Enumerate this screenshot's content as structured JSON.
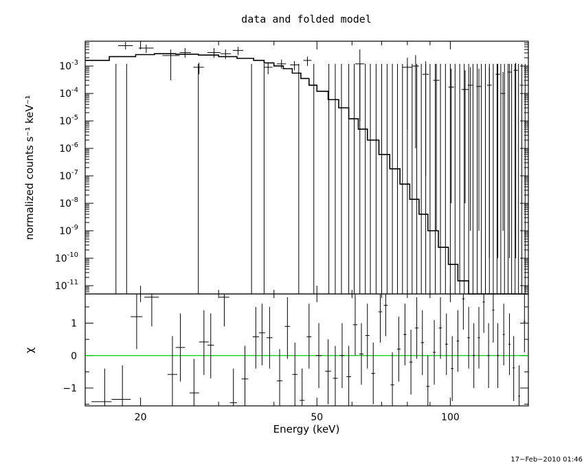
{
  "chart_data": [
    {
      "type": "step",
      "panel": "spectrum",
      "title": "data and folded model",
      "ylabel": "normalized counts s⁻¹ keV⁻¹",
      "yscale": "log",
      "xscale": "log",
      "xlim": [
        15,
        150
      ],
      "ylim": [
        5e-12,
        0.008
      ],
      "yticks": [
        {
          "value": 0.001,
          "mantissa": "10",
          "exp": "-3"
        },
        {
          "value": 0.0001,
          "mantissa": "10",
          "exp": "-4"
        },
        {
          "value": 1e-05,
          "mantissa": "10",
          "exp": "-5"
        },
        {
          "value": 1e-06,
          "mantissa": "10",
          "exp": "-6"
        },
        {
          "value": 1e-07,
          "mantissa": "10",
          "exp": "-7"
        },
        {
          "value": 1e-08,
          "mantissa": "10",
          "exp": "-8"
        },
        {
          "value": 1e-09,
          "mantissa": "10",
          "exp": "-9"
        },
        {
          "value": 1e-10,
          "mantissa": "10",
          "exp": "-10"
        },
        {
          "value": 1e-11,
          "mantissa": "10",
          "exp": "-11"
        }
      ],
      "model_step": {
        "x": [
          15,
          17,
          19.5,
          21.5,
          24,
          27,
          30,
          33,
          36,
          38,
          40,
          42,
          44,
          46,
          48,
          50,
          53,
          56,
          59,
          62,
          65,
          69,
          73,
          77,
          81,
          85,
          89,
          94,
          99,
          104,
          110,
          116,
          122,
          129,
          136,
          143,
          150
        ],
        "y": [
          0.0016,
          0.0022,
          0.0026,
          0.0028,
          0.0027,
          0.0025,
          0.0022,
          0.0019,
          0.0016,
          0.0013,
          0.001,
          0.0008,
          0.00055,
          0.00035,
          0.0002,
          0.00012,
          6e-05,
          3e-05,
          1.2e-05,
          5e-06,
          2e-06,
          6e-07,
          1.8e-07,
          5e-08,
          1.4e-08,
          4e-09,
          1e-09,
          2.5e-10,
          6e-11,
          1.5e-11,
          5e-12,
          5e-12,
          5e-12,
          5e-12,
          5e-12,
          5e-12,
          5e-12
        ]
      },
      "data_points": [
        {
          "x": 18.5,
          "xerr": [
            17.8,
            19.2
          ],
          "y": 0.0055,
          "ylo": 0.004,
          "yhi": 0.0075
        },
        {
          "x": 20.6,
          "xerr": [
            19.8,
            21.4
          ],
          "y": 0.0045,
          "ylo": 0.003,
          "yhi": 0.006
        },
        {
          "x": 23.4,
          "xerr": [
            22.4,
            24.5
          ],
          "y": 0.0024,
          "ylo": 0.0003,
          "yhi": 0.004
        },
        {
          "x": 25.2,
          "xerr": [
            24.5,
            26.0
          ],
          "y": 0.0031,
          "ylo": 0.002,
          "yhi": 0.0045
        },
        {
          "x": 27.1,
          "xerr": [
            26.3,
            27.8
          ],
          "y": 0.0009,
          "ylo": 0.0005,
          "yhi": 0.0013
        },
        {
          "x": 29.3,
          "xerr": [
            28.3,
            30.3
          ],
          "y": 0.0031,
          "ylo": 0.002,
          "yhi": 0.0045
        },
        {
          "x": 31.1,
          "xerr": [
            30.3,
            32.0
          ],
          "y": 0.0028,
          "ylo": 0.0018,
          "yhi": 0.004
        },
        {
          "x": 33.2,
          "xerr": [
            32.3,
            34.1
          ],
          "y": 0.0037,
          "ylo": 0.0025,
          "yhi": 0.005
        },
        {
          "x": 38.8,
          "xerr": [
            38.0,
            39.7
          ],
          "y": 0.0009,
          "ylo": 0.0005,
          "yhi": 0.0013
        },
        {
          "x": 41.6,
          "xerr": [
            40.6,
            42.6
          ],
          "y": 0.0012,
          "ylo": 0.0008,
          "yhi": 0.0017
        },
        {
          "x": 44.5,
          "xerr": [
            43.5,
            45.6
          ],
          "y": 0.0011,
          "ylo": 0.0007,
          "yhi": 0.0015
        },
        {
          "x": 47.6,
          "xerr": [
            46.6,
            48.6
          ],
          "y": 0.0016,
          "ylo": 0.001,
          "yhi": 0.0022
        },
        {
          "x": 62.5,
          "xerr": [
            61.0,
            64.0
          ],
          "y": 0.0012,
          "ylo": 1e-05,
          "yhi": 0.004
        },
        {
          "x": 80.0,
          "xerr": [
            78.0,
            82.0
          ],
          "y": 0.0009,
          "ylo": 5e-06,
          "yhi": 0.002
        },
        {
          "x": 83.5,
          "xerr": [
            82.0,
            85.0
          ],
          "y": 0.001,
          "ylo": 1e-06,
          "yhi": 0.0025
        },
        {
          "x": 88.0,
          "xerr": [
            86.5,
            89.5
          ],
          "y": 0.0005,
          "ylo": 1e-07,
          "yhi": 0.0015
        },
        {
          "x": 93.0,
          "xerr": [
            91.5,
            94.5
          ],
          "y": 0.0003,
          "ylo": 1e-09,
          "yhi": 0.0012
        },
        {
          "x": 100.5,
          "xerr": [
            99.0,
            102.0
          ],
          "y": 0.00017,
          "ylo": 1e-08,
          "yhi": 0.0008
        },
        {
          "x": 108.0,
          "xerr": [
            106.0,
            110.0
          ],
          "y": 0.00014,
          "ylo": 1e-08,
          "yhi": 0.0007
        },
        {
          "x": 111.0,
          "xerr": [
            109.5,
            112.5
          ],
          "y": 0.0002,
          "ylo": 1e-09,
          "yhi": 0.0009
        },
        {
          "x": 116.0,
          "xerr": [
            114.5,
            117.5
          ],
          "y": 0.00018,
          "ylo": 1e-09,
          "yhi": 0.0008
        },
        {
          "x": 122.5,
          "xerr": [
            121.0,
            124.0
          ],
          "y": 0.0002,
          "ylo": 1e-10,
          "yhi": 0.0009
        },
        {
          "x": 128.0,
          "xerr": [
            126.5,
            129.5
          ],
          "y": 0.0005,
          "ylo": 1e-10,
          "yhi": 0.0012
        },
        {
          "x": 131.5,
          "xerr": [
            130.0,
            133.0
          ],
          "y": 0.0001,
          "ylo": 1e-09,
          "yhi": 0.0006
        },
        {
          "x": 136.0,
          "xerr": [
            134.5,
            137.5
          ],
          "y": 0.0006,
          "ylo": 1e-10,
          "yhi": 0.0012
        },
        {
          "x": 140.5,
          "xerr": [
            139.0,
            142.0
          ],
          "y": 0.0007,
          "ylo": 1e-10,
          "yhi": 0.0013
        },
        {
          "x": 145.0,
          "xerr": [
            143.5,
            146.5
          ],
          "y": 0.0002,
          "ylo": 1e-10,
          "yhi": 0.0008
        }
      ],
      "upper_limit_lines_x": [
        17.6,
        18.6,
        27.0,
        35.6,
        38.0,
        45.5,
        49.2,
        53.2,
        55.0,
        56.8,
        59.0,
        60.7,
        62.5,
        64.3,
        66.0,
        68.0,
        70.0,
        72.0,
        74.0,
        76.0,
        78.0,
        80.0,
        82.0,
        84.0,
        86.0,
        88.0,
        90.0,
        92.5,
        95.0,
        97.5,
        100.0,
        102.5,
        105.0,
        107.5,
        110.0,
        112.5,
        115.0,
        117.5,
        120.0,
        122.5,
        125.0,
        127.5,
        130.0,
        132.5,
        135.0,
        137.5,
        140.0,
        142.5,
        145.0,
        147.5
      ]
    },
    {
      "type": "errorbar",
      "panel": "residuals",
      "xlabel": "Energy (keV)",
      "ylabel": "χ",
      "xscale": "log",
      "xlim": [
        15,
        150
      ],
      "ylim": [
        -1.55,
        1.9
      ],
      "yticks": [
        "1",
        "0",
        "−1"
      ],
      "yticks_values": [
        1,
        0,
        -1
      ],
      "xticks": [
        "20",
        "50",
        "100"
      ],
      "xticks_values": [
        20,
        50,
        100
      ],
      "zero_line_color": "#00cc00",
      "points": [
        {
          "x": 16.6,
          "xlo": 15.5,
          "xhi": 17.2,
          "y": -1.42,
          "ylo": -2,
          "yhi": -0.4
        },
        {
          "x": 18.2,
          "xlo": 17.2,
          "xhi": 19.0,
          "y": -1.35,
          "ylo": -2,
          "yhi": -0.3
        },
        {
          "x": 19.6,
          "xlo": 19.0,
          "xhi": 20.2,
          "y": 1.2,
          "ylo": 0.2,
          "yhi": 1.9
        },
        {
          "x": 21.2,
          "xlo": 20.4,
          "xhi": 22.0,
          "y": 1.8,
          "ylo": 0.9,
          "yhi": 1.9
        },
        {
          "x": 23.6,
          "xlo": 23.0,
          "xhi": 24.2,
          "y": -0.58,
          "ylo": -1.9,
          "yhi": 0.6
        },
        {
          "x": 24.6,
          "xlo": 24.0,
          "xhi": 25.2,
          "y": 0.25,
          "ylo": -0.8,
          "yhi": 1.3
        },
        {
          "x": 26.4,
          "xlo": 25.8,
          "xhi": 27.1,
          "y": -1.15,
          "ylo": -2,
          "yhi": -0.1
        },
        {
          "x": 27.8,
          "xlo": 27.1,
          "xhi": 28.5,
          "y": 0.42,
          "ylo": -0.6,
          "yhi": 1.4
        },
        {
          "x": 28.8,
          "xlo": 28.3,
          "xhi": 29.3,
          "y": 0.32,
          "ylo": -0.7,
          "yhi": 1.3
        },
        {
          "x": 30.9,
          "xlo": 30.1,
          "xhi": 31.7,
          "y": 1.8,
          "ylo": 0.9,
          "yhi": 1.9
        },
        {
          "x": 32.4,
          "xlo": 31.8,
          "xhi": 33.0,
          "y": -1.45,
          "ylo": -2,
          "yhi": -0.4
        },
        {
          "x": 34.4,
          "xlo": 33.8,
          "xhi": 35.0,
          "y": -0.72,
          "ylo": -1.7,
          "yhi": 0.3
        },
        {
          "x": 36.4,
          "xlo": 35.8,
          "xhi": 37.0,
          "y": 0.58,
          "ylo": -0.4,
          "yhi": 1.5
        },
        {
          "x": 37.6,
          "xlo": 37.0,
          "xhi": 38.2,
          "y": 0.7,
          "ylo": -0.3,
          "yhi": 1.6
        },
        {
          "x": 39.1,
          "xlo": 38.5,
          "xhi": 39.7,
          "y": 0.55,
          "ylo": -0.4,
          "yhi": 1.5
        },
        {
          "x": 41.2,
          "xlo": 40.6,
          "xhi": 41.8,
          "y": -0.78,
          "ylo": -1.8,
          "yhi": 0.2
        },
        {
          "x": 42.9,
          "xlo": 42.3,
          "xhi": 43.5,
          "y": 0.9,
          "ylo": -0.1,
          "yhi": 1.8
        },
        {
          "x": 44.6,
          "xlo": 44.0,
          "xhi": 45.2,
          "y": -0.58,
          "ylo": -1.6,
          "yhi": 0.4
        },
        {
          "x": 46.3,
          "xlo": 45.7,
          "xhi": 46.9,
          "y": -1.38,
          "ylo": -2,
          "yhi": -0.4
        },
        {
          "x": 48.0,
          "xlo": 47.4,
          "xhi": 48.6,
          "y": 0.58,
          "ylo": -0.4,
          "yhi": 1.6
        },
        {
          "x": 50.5,
          "xlo": 49.7,
          "xhi": 51.3,
          "y": 0.0,
          "ylo": -1.0,
          "yhi": 1.0
        },
        {
          "x": 53.0,
          "xlo": 52.2,
          "xhi": 53.8,
          "y": -0.48,
          "ylo": -1.5,
          "yhi": 0.5
        },
        {
          "x": 55.0,
          "xlo": 54.3,
          "xhi": 55.7,
          "y": -0.7,
          "ylo": -1.7,
          "yhi": 0.3
        },
        {
          "x": 57.0,
          "xlo": 56.3,
          "xhi": 57.7,
          "y": 0.0,
          "ylo": -1.0,
          "yhi": 1.0
        },
        {
          "x": 59.0,
          "xlo": 58.3,
          "xhi": 59.7,
          "y": -0.65,
          "ylo": -1.6,
          "yhi": 0.3
        },
        {
          "x": 61.0,
          "xlo": 60.3,
          "xhi": 61.7,
          "y": 0.95,
          "ylo": 0.0,
          "yhi": 1.9
        },
        {
          "x": 63.0,
          "xlo": 62.3,
          "xhi": 63.7,
          "y": 0.05,
          "ylo": -0.9,
          "yhi": 1.0
        },
        {
          "x": 65.0,
          "xlo": 64.3,
          "xhi": 65.7,
          "y": 0.62,
          "ylo": -0.4,
          "yhi": 1.6
        },
        {
          "x": 67.0,
          "xlo": 66.3,
          "xhi": 67.7,
          "y": -0.55,
          "ylo": -1.5,
          "yhi": 0.4
        },
        {
          "x": 69.5,
          "xlo": 68.8,
          "xhi": 70.2,
          "y": 1.35,
          "ylo": 0.4,
          "yhi": 1.9
        },
        {
          "x": 71.5,
          "xlo": 70.8,
          "xhi": 72.2,
          "y": 1.55,
          "ylo": 0.6,
          "yhi": 1.9
        },
        {
          "x": 74.0,
          "xlo": 73.3,
          "xhi": 74.7,
          "y": -0.9,
          "ylo": -1.9,
          "yhi": 0.1
        },
        {
          "x": 76.5,
          "xlo": 75.8,
          "xhi": 77.2,
          "y": 0.2,
          "ylo": -0.8,
          "yhi": 1.2
        },
        {
          "x": 79.0,
          "xlo": 78.3,
          "xhi": 79.7,
          "y": 0.65,
          "ylo": -0.3,
          "yhi": 1.6
        },
        {
          "x": 81.5,
          "xlo": 80.8,
          "xhi": 82.2,
          "y": -0.2,
          "ylo": -1.2,
          "yhi": 0.8
        },
        {
          "x": 84.0,
          "xlo": 83.3,
          "xhi": 84.7,
          "y": 0.85,
          "ylo": -0.1,
          "yhi": 1.8
        },
        {
          "x": 86.5,
          "xlo": 85.8,
          "xhi": 87.2,
          "y": 0.4,
          "ylo": -0.6,
          "yhi": 1.4
        },
        {
          "x": 89.0,
          "xlo": 88.3,
          "xhi": 89.7,
          "y": -0.95,
          "ylo": -1.9,
          "yhi": 0.0
        },
        {
          "x": 92.0,
          "xlo": 91.3,
          "xhi": 92.7,
          "y": 0.1,
          "ylo": -0.9,
          "yhi": 1.1
        },
        {
          "x": 95.0,
          "xlo": 94.3,
          "xhi": 95.7,
          "y": 0.85,
          "ylo": -0.1,
          "yhi": 1.8
        },
        {
          "x": 98.0,
          "xlo": 97.3,
          "xhi": 98.7,
          "y": 0.35,
          "ylo": -0.6,
          "yhi": 1.3
        },
        {
          "x": 101.0,
          "xlo": 100.3,
          "xhi": 101.7,
          "y": -0.4,
          "ylo": -1.4,
          "yhi": 0.6
        },
        {
          "x": 104.0,
          "xlo": 103.3,
          "xhi": 104.7,
          "y": 0.45,
          "ylo": -0.5,
          "yhi": 1.4
        },
        {
          "x": 107.0,
          "xlo": 106.3,
          "xhi": 107.7,
          "y": 1.75,
          "ylo": 0.8,
          "yhi": 1.9
        },
        {
          "x": 110.0,
          "xlo": 109.3,
          "xhi": 110.7,
          "y": 0.55,
          "ylo": -0.4,
          "yhi": 1.5
        },
        {
          "x": 113.0,
          "xlo": 112.3,
          "xhi": 113.7,
          "y": 0.0,
          "ylo": -1.0,
          "yhi": 1.0
        },
        {
          "x": 116.0,
          "xlo": 115.3,
          "xhi": 116.7,
          "y": 0.55,
          "ylo": -0.4,
          "yhi": 1.5
        },
        {
          "x": 119.0,
          "xlo": 118.3,
          "xhi": 119.7,
          "y": 1.65,
          "ylo": 0.7,
          "yhi": 1.9
        },
        {
          "x": 122.0,
          "xlo": 121.3,
          "xhi": 122.7,
          "y": 0.0,
          "ylo": -1.0,
          "yhi": 1.0
        },
        {
          "x": 125.0,
          "xlo": 124.3,
          "xhi": 125.7,
          "y": 1.4,
          "ylo": 0.4,
          "yhi": 1.9
        },
        {
          "x": 128.0,
          "xlo": 127.3,
          "xhi": 128.7,
          "y": 0.0,
          "ylo": -1.0,
          "yhi": 1.0
        },
        {
          "x": 132.0,
          "xlo": 131.3,
          "xhi": 132.7,
          "y": 0.65,
          "ylo": -0.3,
          "yhi": 1.6
        },
        {
          "x": 136.0,
          "xlo": 135.3,
          "xhi": 136.7,
          "y": 0.35,
          "ylo": -0.6,
          "yhi": 1.3
        },
        {
          "x": 139.0,
          "xlo": 138.3,
          "xhi": 139.7,
          "y": -0.38,
          "ylo": -1.4,
          "yhi": 0.6
        },
        {
          "x": 143.0,
          "xlo": 142.3,
          "xhi": 143.7,
          "y": -1.25,
          "ylo": -2,
          "yhi": -0.3
        },
        {
          "x": 147.0,
          "xlo": 146.3,
          "xhi": 147.7,
          "y": 1.05,
          "ylo": 0.1,
          "yhi": 1.9
        }
      ]
    }
  ],
  "footer": {
    "timestamp": "17−Feb−2010 01:46"
  }
}
